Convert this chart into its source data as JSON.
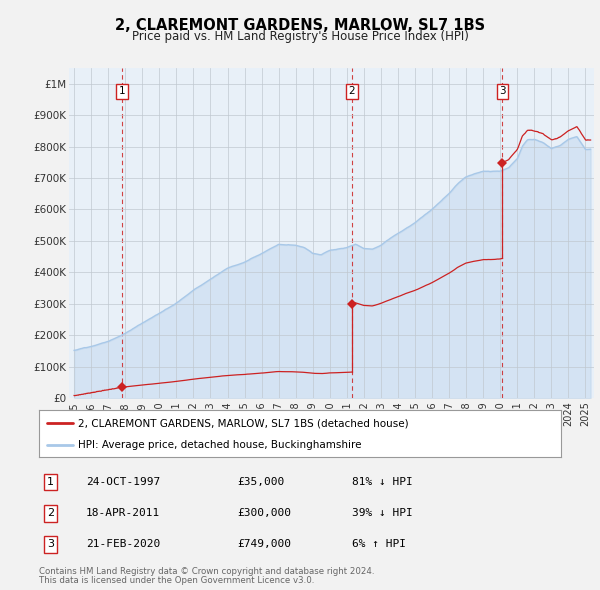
{
  "title": "2, CLAREMONT GARDENS, MARLOW, SL7 1BS",
  "subtitle": "Price paid vs. HM Land Registry's House Price Index (HPI)",
  "hpi_color": "#a8c8e8",
  "hpi_fill_color": "#d0e8f8",
  "price_color": "#cc2222",
  "sale_dot_color": "#cc2222",
  "vline_color": "#cc2222",
  "background_color": "#f0f0f0",
  "plot_bg_color": "#e8f0f8",
  "grid_color": "#c0c8d0",
  "ylim": [
    0,
    1050000
  ],
  "yticks": [
    0,
    100000,
    200000,
    300000,
    400000,
    500000,
    600000,
    700000,
    800000,
    900000,
    1000000
  ],
  "ytick_labels": [
    "£0",
    "£100K",
    "£200K",
    "£300K",
    "£400K",
    "£500K",
    "£600K",
    "£700K",
    "£800K",
    "£900K",
    "£1M"
  ],
  "xlim_start": 1994.7,
  "xlim_end": 2025.5,
  "xtick_years": [
    1995,
    1996,
    1997,
    1998,
    1999,
    2000,
    2001,
    2002,
    2003,
    2004,
    2005,
    2006,
    2007,
    2008,
    2009,
    2010,
    2011,
    2012,
    2013,
    2014,
    2015,
    2016,
    2017,
    2018,
    2019,
    2020,
    2021,
    2022,
    2023,
    2024,
    2025
  ],
  "sales": [
    {
      "year": 1997.81,
      "price": 35000,
      "label": "1",
      "date": "24-OCT-1997",
      "pct": "81% ↓ HPI"
    },
    {
      "year": 2011.29,
      "price": 300000,
      "label": "2",
      "date": "18-APR-2011",
      "pct": "39% ↓ HPI"
    },
    {
      "year": 2020.13,
      "price": 749000,
      "label": "3",
      "date": "21-FEB-2020",
      "pct": "6% ↑ HPI"
    }
  ],
  "legend_property_label": "2, CLAREMONT GARDENS, MARLOW, SL7 1BS (detached house)",
  "legend_hpi_label": "HPI: Average price, detached house, Buckinghamshire",
  "footer1": "Contains HM Land Registry data © Crown copyright and database right 2024.",
  "footer2": "This data is licensed under the Open Government Licence v3.0.",
  "hpi_years_key": [
    1995,
    1996,
    1997,
    1998,
    1999,
    2000,
    2001,
    2002,
    2003,
    2004,
    2005,
    2006,
    2007,
    2008,
    2008.5,
    2009,
    2009.5,
    2010,
    2010.5,
    2011,
    2011.5,
    2012,
    2012.5,
    2013,
    2014,
    2015,
    2016,
    2017,
    2017.5,
    2018,
    2018.5,
    2019,
    2019.5,
    2020,
    2020.5,
    2021,
    2021.3,
    2021.6,
    2022,
    2022.5,
    2023,
    2023.5,
    2024,
    2024.5,
    2025
  ],
  "hpi_values_key": [
    148000,
    162000,
    178000,
    205000,
    238000,
    272000,
    305000,
    348000,
    382000,
    415000,
    435000,
    462000,
    492000,
    488000,
    480000,
    462000,
    458000,
    472000,
    478000,
    482000,
    492000,
    478000,
    475000,
    488000,
    525000,
    558000,
    598000,
    648000,
    678000,
    700000,
    710000,
    718000,
    718000,
    720000,
    730000,
    760000,
    800000,
    820000,
    820000,
    810000,
    790000,
    800000,
    820000,
    830000,
    790000
  ],
  "sale1_year": 1997.81,
  "sale2_year": 2011.29,
  "sale3_year": 2020.13,
  "sale1_price": 35000,
  "sale2_price": 300000,
  "sale3_price": 749000
}
